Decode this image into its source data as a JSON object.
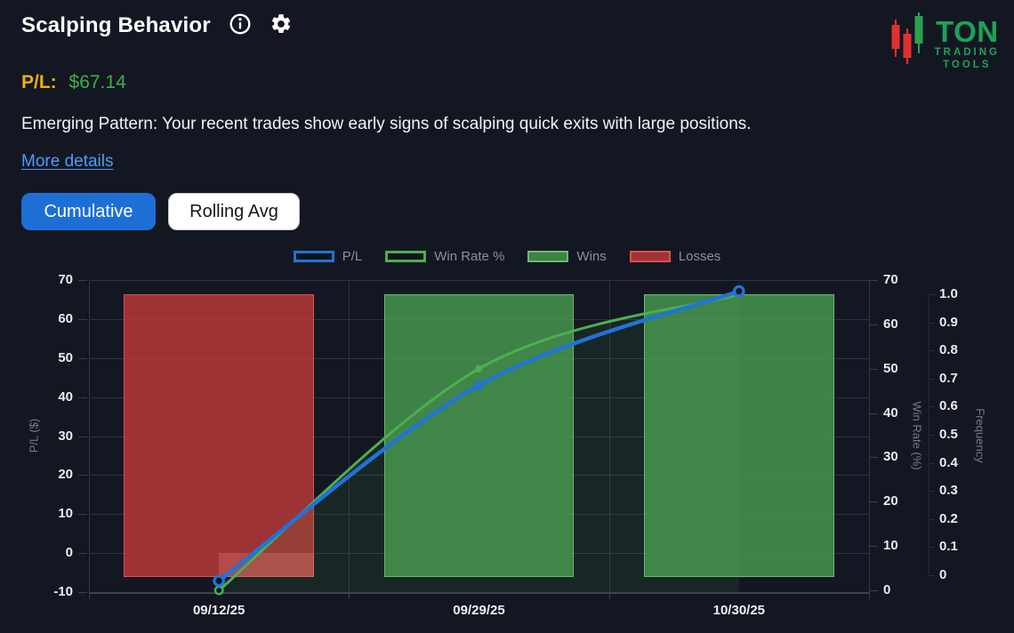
{
  "header": {
    "title": "Scalping Behavior",
    "info_icon": "info-circle",
    "settings_icon": "gear"
  },
  "logo": {
    "title": "TON",
    "subtitle_line1": "TRADING",
    "subtitle_line2": "TOOLS",
    "brand_green": "#1da258",
    "candle_red": "#e03131",
    "candle_green": "#2e9e4f"
  },
  "summary": {
    "pl_label": "P/L:",
    "pl_value": "$67.14",
    "pattern_text": "Emerging Pattern: Your recent trades show early signs of scalping quick exits with large positions.",
    "more_details_link": "More details"
  },
  "toolbar": {
    "cumulative_label": "Cumulative",
    "rolling_avg_label": "Rolling Avg",
    "active_tab": "Cumulative"
  },
  "colors": {
    "background": "#131722",
    "accent_blue": "#2074d8",
    "accent_green": "#4caf50",
    "bar_green_fill": "rgba(74,158,82,0.8)",
    "bar_green_border": "rgba(108,190,112,0.95)",
    "bar_red_fill": "rgba(194,59,59,0.8)",
    "bar_red_border": "rgba(224,82,82,0.95)",
    "gold": "#e9b20a",
    "value_green": "#3fae4b",
    "link_blue": "#4e9df5",
    "grid": "#2f3340",
    "axis_text": "#e9ebee",
    "muted_text": "#767b87",
    "legend_text": "#8b909c"
  },
  "chart_data": {
    "type": "mixed",
    "categories": [
      "09/12/25",
      "09/29/25",
      "10/30/25"
    ],
    "series": [
      {
        "name": "P/L",
        "type": "line",
        "axis": "pl",
        "color": "#2074d8",
        "values": [
          -7.1,
          43.0,
          67.14
        ]
      },
      {
        "name": "Win Rate %",
        "type": "line",
        "axis": "winrate",
        "color": "#4caf50",
        "area_fill": true,
        "values": [
          0,
          50,
          66.7
        ]
      },
      {
        "name": "Wins",
        "type": "bar",
        "axis": "frequency",
        "color": "rgba(74,158,82,0.8)",
        "border": "rgba(108,190,112,0.95)",
        "values": [
          null,
          1,
          1
        ]
      },
      {
        "name": "Losses",
        "type": "bar",
        "axis": "frequency",
        "color": "rgba(194,59,59,0.8)",
        "border": "rgba(224,82,82,0.95)",
        "values": [
          1,
          null,
          null
        ]
      }
    ],
    "axes": {
      "pl": {
        "label": "P/L ($)",
        "min": -10,
        "max": 70,
        "step": 10,
        "side": "left",
        "ticks": [
          "-10",
          "0",
          "10",
          "20",
          "30",
          "40",
          "50",
          "60",
          "70"
        ]
      },
      "winrate": {
        "label": "Win Rate (%)",
        "min": 0,
        "max": 70,
        "step": 10,
        "side": "right",
        "ticks": [
          "0",
          "10",
          "20",
          "30",
          "40",
          "50",
          "60",
          "70"
        ]
      },
      "frequency": {
        "label": "Frequency",
        "min": 0,
        "max": 1,
        "step": 0.1,
        "side": "right-outer",
        "ticks": [
          "0",
          "0.1",
          "0.2",
          "0.3",
          "0.4",
          "0.5",
          "0.6",
          "0.7",
          "0.8",
          "0.9",
          "1.0"
        ]
      }
    },
    "legend": [
      "P/L",
      "Win Rate %",
      "Wins",
      "Losses"
    ],
    "grid": true,
    "losses_pl_overlay": {
      "category_index": 0,
      "from": 0,
      "to": -6.5
    }
  }
}
